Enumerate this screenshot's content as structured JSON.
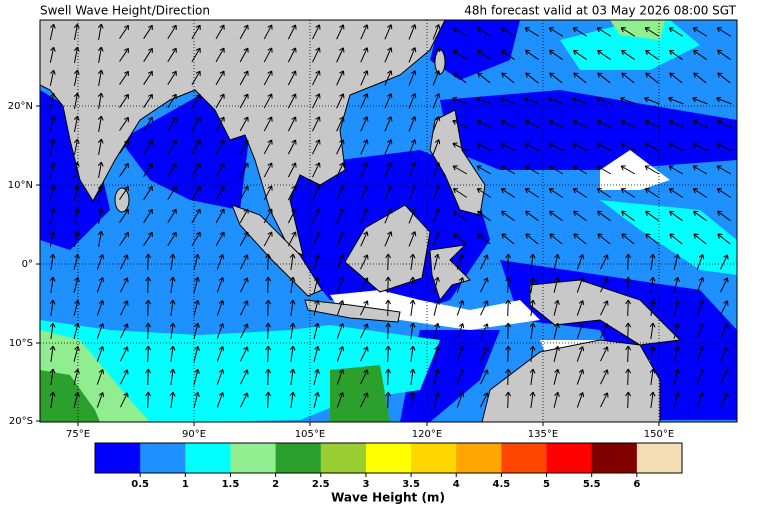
{
  "header": {
    "title": "Swell Wave Height/Direction",
    "valid": "48h forecast valid at 03 May 2026 08:00 SGT"
  },
  "map": {
    "lat_labels": [
      "20°N",
      "10°N",
      "0°",
      "10°S",
      "20°S"
    ],
    "lon_labels": [
      "75°E",
      "90°E",
      "105°E",
      "120°E",
      "135°E",
      "150°E"
    ]
  },
  "colorbar": {
    "colors": [
      "#0000ff",
      "#1e90ff",
      "#00ffff",
      "#90ee90",
      "#2ca02c",
      "#9acd32",
      "#ffff00",
      "#ffd700",
      "#ffa500",
      "#ff4500",
      "#ff0000",
      "#800000",
      "#f5deb3"
    ],
    "ticks": [
      0.5,
      1,
      1.5,
      2,
      2.5,
      3,
      3.5,
      4,
      4.5,
      5,
      5.5,
      6
    ],
    "label": "Wave Height (m)"
  }
}
